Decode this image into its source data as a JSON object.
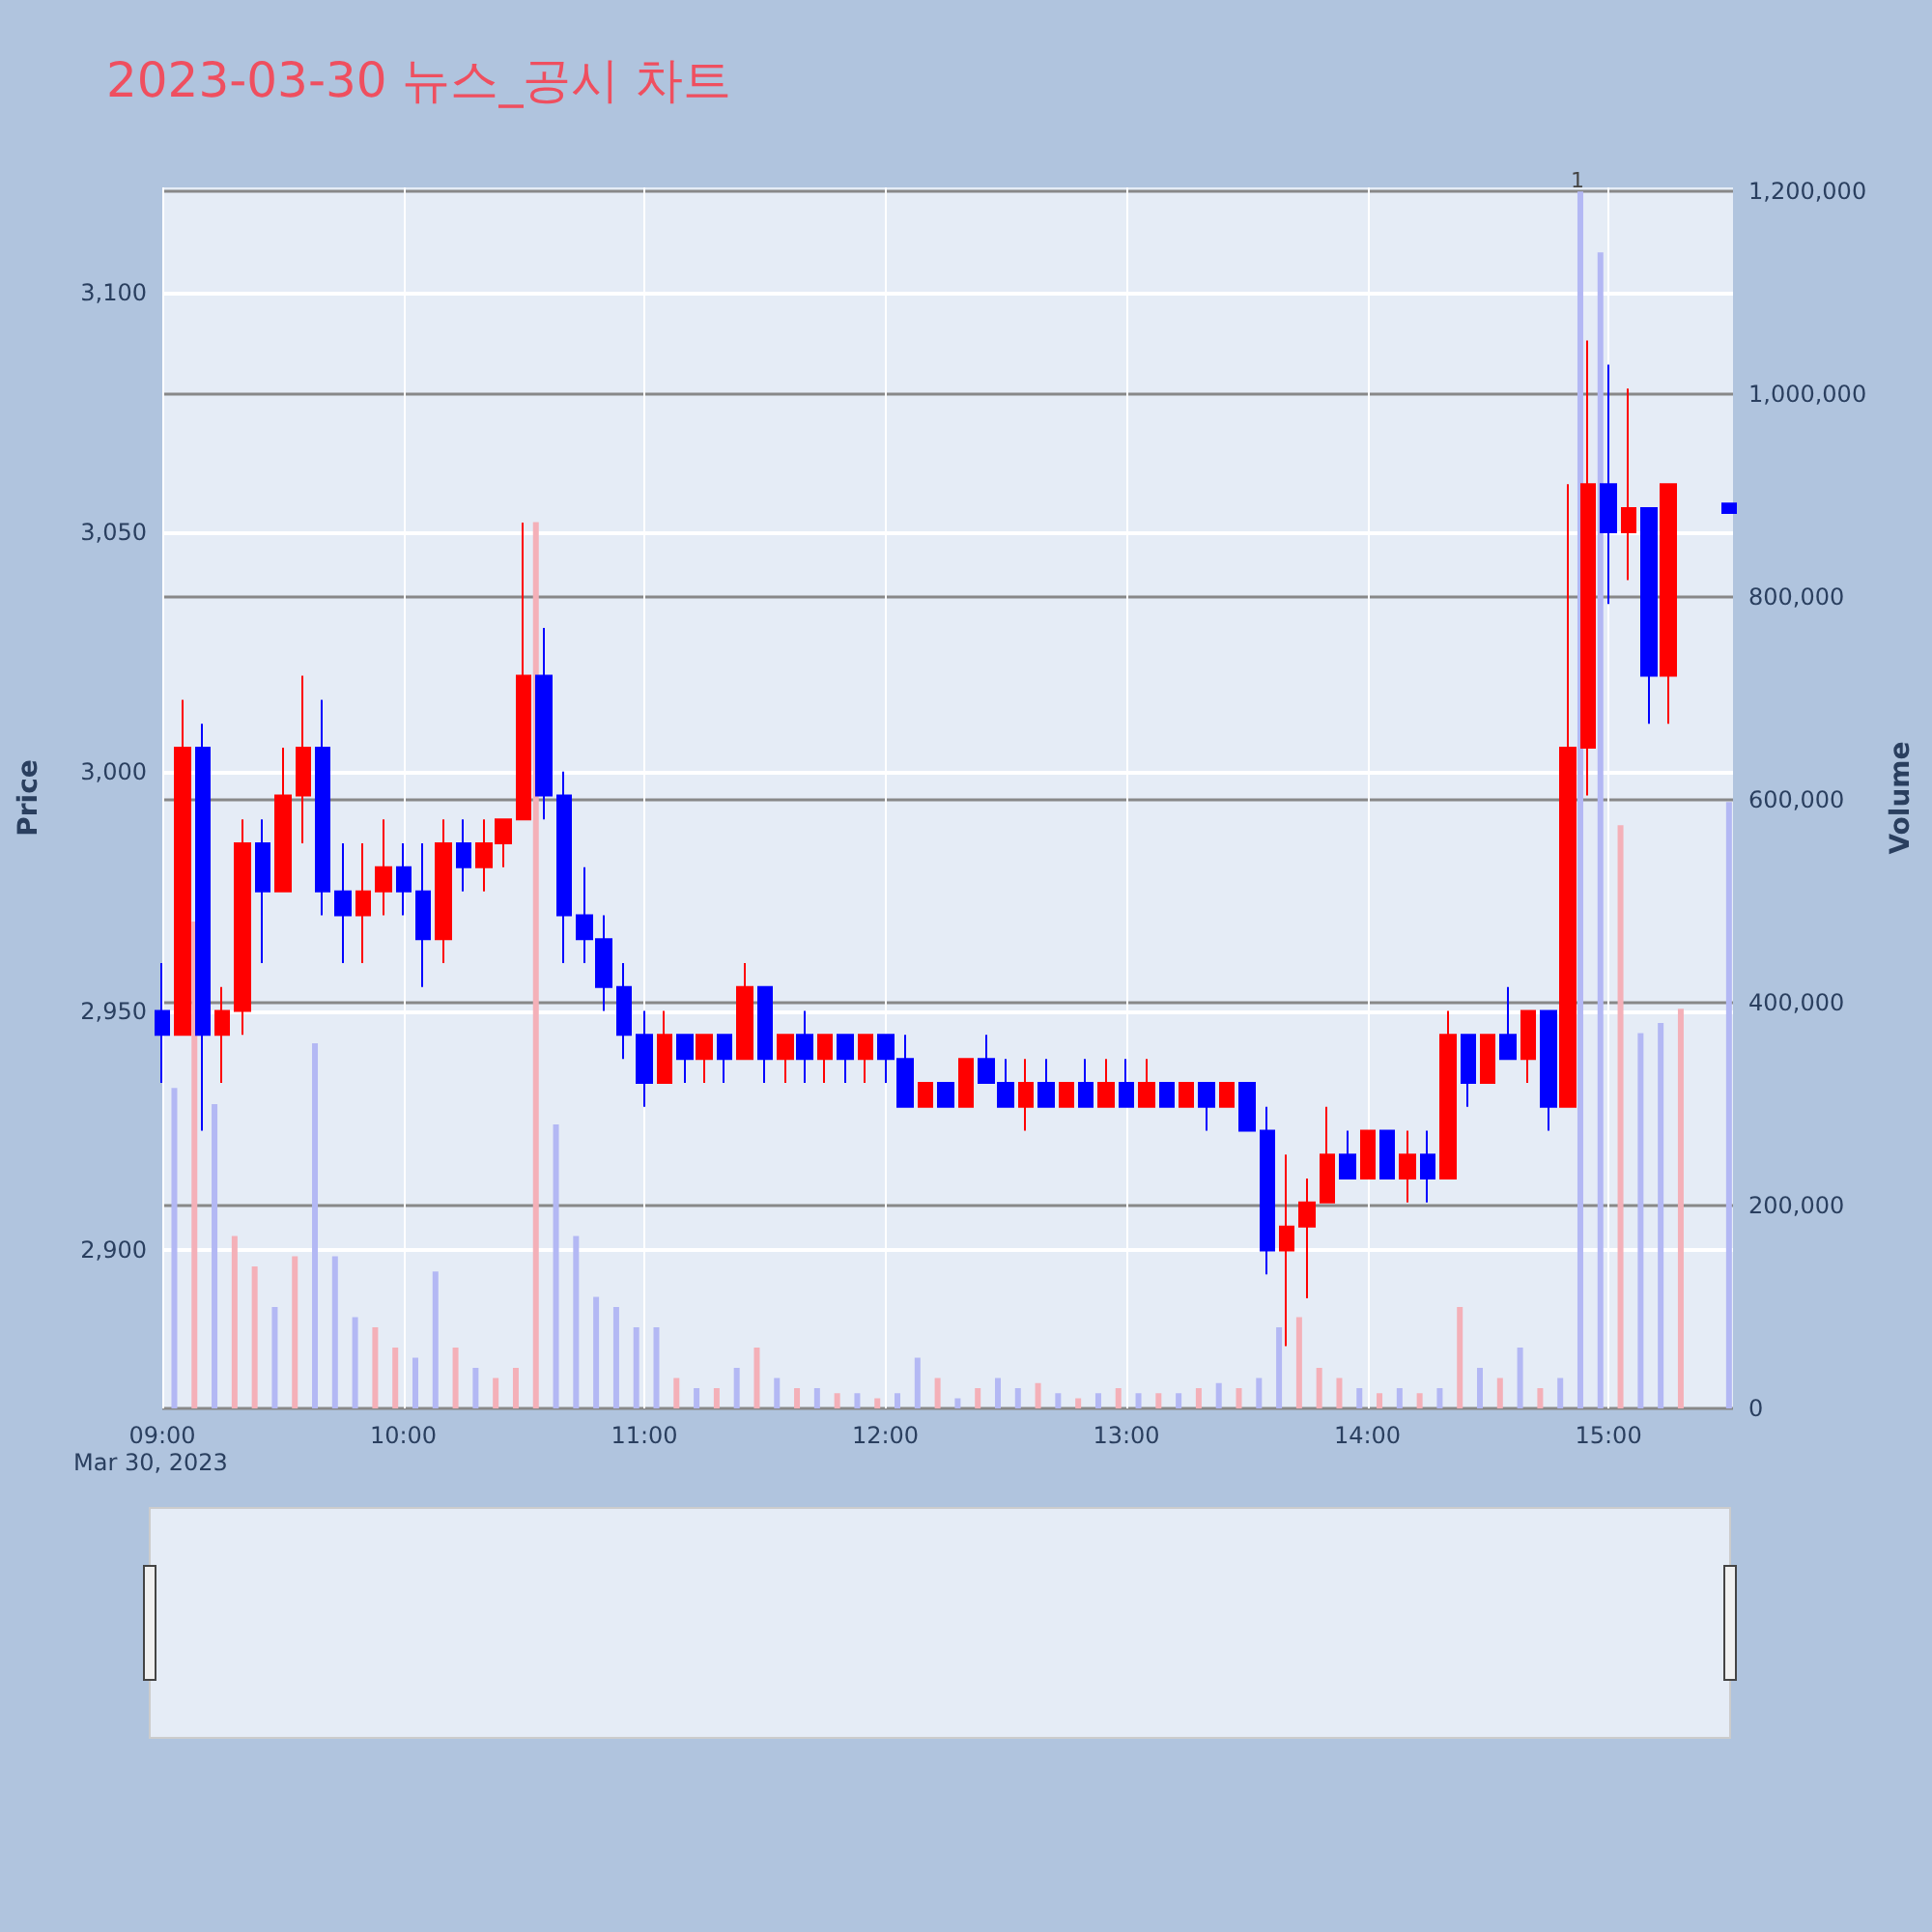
{
  "chart_data": {
    "type": "candlestick",
    "title": "2023-03-30 뉴스_공시 차트",
    "ylabel": "Price",
    "y2label": "Volume",
    "x": [
      "2023-03-30T09:00",
      "2023-03-30T09:05",
      "2023-03-30T09:10",
      "2023-03-30T09:15",
      "2023-03-30T09:20",
      "2023-03-30T09:25",
      "2023-03-30T09:30",
      "2023-03-30T09:35",
      "2023-03-30T09:40",
      "2023-03-30T09:45",
      "2023-03-30T09:50",
      "2023-03-30T09:55",
      "2023-03-30T10:00",
      "2023-03-30T10:05",
      "2023-03-30T10:10",
      "2023-03-30T10:15",
      "2023-03-30T10:20",
      "2023-03-30T10:25",
      "2023-03-30T10:30",
      "2023-03-30T10:35",
      "2023-03-30T10:40",
      "2023-03-30T10:45",
      "2023-03-30T10:50",
      "2023-03-30T10:55",
      "2023-03-30T11:00",
      "2023-03-30T11:05",
      "2023-03-30T11:10",
      "2023-03-30T11:15",
      "2023-03-30T11:20",
      "2023-03-30T11:25",
      "2023-03-30T11:30",
      "2023-03-30T11:35",
      "2023-03-30T11:40",
      "2023-03-30T11:45",
      "2023-03-30T11:50",
      "2023-03-30T11:55",
      "2023-03-30T12:00",
      "2023-03-30T12:05",
      "2023-03-30T12:10",
      "2023-03-30T12:15",
      "2023-03-30T12:20",
      "2023-03-30T12:25",
      "2023-03-30T12:30",
      "2023-03-30T12:35",
      "2023-03-30T12:40",
      "2023-03-30T12:45",
      "2023-03-30T12:50",
      "2023-03-30T12:55",
      "2023-03-30T13:00",
      "2023-03-30T13:05",
      "2023-03-30T13:10",
      "2023-03-30T13:15",
      "2023-03-30T13:20",
      "2023-03-30T13:25",
      "2023-03-30T13:30",
      "2023-03-30T13:35",
      "2023-03-30T13:40",
      "2023-03-30T13:45",
      "2023-03-30T13:50",
      "2023-03-30T13:55",
      "2023-03-30T14:00",
      "2023-03-30T14:05",
      "2023-03-30T14:10",
      "2023-03-30T14:15",
      "2023-03-30T14:20",
      "2023-03-30T14:25",
      "2023-03-30T14:30",
      "2023-03-30T14:35",
      "2023-03-30T14:40",
      "2023-03-30T14:45",
      "2023-03-30T14:50",
      "2023-03-30T14:55",
      "2023-03-30T15:00",
      "2023-03-30T15:05",
      "2023-03-30T15:10",
      "2023-03-30T15:15",
      "2023-03-30T15:30"
    ],
    "xlim": [
      "2023-03-30T09:00",
      "2023-03-30T15:31"
    ],
    "xticks": [
      {
        "value": "2023-03-30T09:00",
        "label": "09:00"
      },
      {
        "value": "2023-03-30T10:00",
        "label": "10:00"
      },
      {
        "value": "2023-03-30T11:00",
        "label": "11:00"
      },
      {
        "value": "2023-03-30T12:00",
        "label": "12:00"
      },
      {
        "value": "2023-03-30T13:00",
        "label": "13:00"
      },
      {
        "value": "2023-03-30T14:00",
        "label": "14:00"
      },
      {
        "value": "2023-03-30T15:00",
        "label": "15:00"
      }
    ],
    "ylim": [
      2867,
      3122
    ],
    "yticks": [
      {
        "value": 2900,
        "label": "2,900"
      },
      {
        "value": 2950,
        "label": "2,950"
      },
      {
        "value": 3000,
        "label": "3,000"
      },
      {
        "value": 3050,
        "label": "3,050"
      },
      {
        "value": 3100,
        "label": "3,100"
      }
    ],
    "y2lim": [
      0,
      1204000
    ],
    "y2ticks": [
      0,
      {
        "value": 200000,
        "label": "200,000"
      },
      {
        "value": 400000,
        "label": "400,000"
      },
      {
        "value": 600000,
        "label": "600,000"
      },
      {
        "value": 800000,
        "label": "800,000"
      },
      {
        "value": 1000000,
        "label": "1,000,000"
      },
      {
        "value": 1200000,
        "label": "1,200,000"
      }
    ],
    "grid": true,
    "annotations": [
      "Mar 30, 2023",
      "1"
    ],
    "series": [
      {
        "ohlc": [
          [
            2950,
            2960,
            2935,
            2945
          ],
          [
            2945,
            3015,
            2945,
            3005
          ],
          [
            3005,
            3010,
            2925,
            2945
          ],
          [
            2945,
            2955,
            2935,
            2950
          ],
          [
            2950,
            2990,
            2945,
            2985
          ],
          [
            2985,
            2990,
            2960,
            2975
          ],
          [
            2975,
            3005,
            2975,
            2995
          ],
          [
            2995,
            3020,
            2985,
            3005
          ],
          [
            3005,
            3015,
            2970,
            2975
          ],
          [
            2975,
            2985,
            2960,
            2970
          ],
          [
            2970,
            2985,
            2960,
            2975
          ],
          [
            2975,
            2990,
            2970,
            2980
          ],
          [
            2980,
            2985,
            2970,
            2975
          ],
          [
            2975,
            2985,
            2955,
            2965
          ],
          [
            2965,
            2990,
            2960,
            2985
          ],
          [
            2985,
            2990,
            2975,
            2980
          ],
          [
            2980,
            2990,
            2975,
            2985
          ],
          [
            2985,
            2990,
            2980,
            2990
          ],
          [
            2990,
            3052,
            2990,
            3020
          ],
          [
            3020,
            3030,
            2990,
            2995
          ],
          [
            2995,
            3000,
            2960,
            2970
          ],
          [
            2970,
            2980,
            2960,
            2965
          ],
          [
            2965,
            2970,
            2950,
            2955
          ],
          [
            2955,
            2960,
            2940,
            2945
          ],
          [
            2945,
            2950,
            2930,
            2935
          ],
          [
            2935,
            2950,
            2935,
            2945
          ],
          [
            2945,
            2945,
            2935,
            2940
          ],
          [
            2940,
            2945,
            2935,
            2945
          ],
          [
            2945,
            2945,
            2935,
            2940
          ],
          [
            2940,
            2960,
            2940,
            2955
          ],
          [
            2955,
            2955,
            2935,
            2940
          ],
          [
            2940,
            2945,
            2935,
            2945
          ],
          [
            2945,
            2950,
            2935,
            2940
          ],
          [
            2940,
            2945,
            2935,
            2945
          ],
          [
            2945,
            2945,
            2935,
            2940
          ],
          [
            2940,
            2945,
            2935,
            2945
          ],
          [
            2945,
            2945,
            2935,
            2940
          ],
          [
            2940,
            2945,
            2930,
            2930
          ],
          [
            2930,
            2935,
            2930,
            2935
          ],
          [
            2935,
            2935,
            2930,
            2930
          ],
          [
            2930,
            2940,
            2930,
            2940
          ],
          [
            2940,
            2945,
            2935,
            2935
          ],
          [
            2935,
            2940,
            2930,
            2930
          ],
          [
            2930,
            2940,
            2925,
            2935
          ],
          [
            2935,
            2940,
            2930,
            2930
          ],
          [
            2930,
            2935,
            2930,
            2935
          ],
          [
            2935,
            2940,
            2930,
            2930
          ],
          [
            2930,
            2940,
            2930,
            2935
          ],
          [
            2935,
            2940,
            2930,
            2930
          ],
          [
            2930,
            2940,
            2930,
            2935
          ],
          [
            2935,
            2935,
            2930,
            2930
          ],
          [
            2930,
            2935,
            2930,
            2935
          ],
          [
            2935,
            2935,
            2925,
            2930
          ],
          [
            2930,
            2935,
            2930,
            2935
          ],
          [
            2935,
            2935,
            2925,
            2925
          ],
          [
            2925,
            2930,
            2895,
            2900
          ],
          [
            2900,
            2920,
            2880,
            2905
          ],
          [
            2905,
            2915,
            2890,
            2910
          ],
          [
            2910,
            2930,
            2910,
            2920
          ],
          [
            2920,
            2925,
            2915,
            2915
          ],
          [
            2915,
            2925,
            2915,
            2925
          ],
          [
            2925,
            2925,
            2915,
            2915
          ],
          [
            2915,
            2925,
            2910,
            2920
          ],
          [
            2920,
            2925,
            2910,
            2915
          ],
          [
            2915,
            2950,
            2915,
            2945
          ],
          [
            2945,
            2945,
            2930,
            2935
          ],
          [
            2935,
            2945,
            2935,
            2945
          ],
          [
            2945,
            2955,
            2940,
            2940
          ],
          [
            2940,
            2950,
            2935,
            2950
          ],
          [
            2950,
            2950,
            2925,
            2930
          ],
          [
            2930,
            3060,
            2930,
            3005
          ],
          [
            3005,
            3090,
            2995,
            3060
          ],
          [
            3060,
            3085,
            3035,
            3050
          ],
          [
            3050,
            3080,
            3040,
            3055
          ],
          [
            3055,
            3055,
            3010,
            3020
          ],
          [
            3020,
            3060,
            3010,
            3060
          ],
          [
            3056,
            3056,
            3054,
            3054
          ]
        ],
        "colors": [
          "#0000ff",
          "#ff0000",
          "#0000ff",
          "#ff0000",
          "#ff0000",
          "#0000ff",
          "#ff0000",
          "#ff0000",
          "#0000ff",
          "#0000ff",
          "#ff0000",
          "#ff0000",
          "#0000ff",
          "#0000ff",
          "#ff0000",
          "#0000ff",
          "#ff0000",
          "#ff0000",
          "#ff0000",
          "#0000ff",
          "#0000ff",
          "#0000ff",
          "#0000ff",
          "#0000ff",
          "#0000ff",
          "#ff0000",
          "#0000ff",
          "#ff0000",
          "#0000ff",
          "#ff0000",
          "#0000ff",
          "#ff0000",
          "#0000ff",
          "#ff0000",
          "#0000ff",
          "#ff0000",
          "#0000ff",
          "#0000ff",
          "#ff0000",
          "#0000ff",
          "#ff0000",
          "#0000ff",
          "#0000ff",
          "#ff0000",
          "#0000ff",
          "#ff0000",
          "#0000ff",
          "#ff0000",
          "#0000ff",
          "#ff0000",
          "#0000ff",
          "#ff0000",
          "#0000ff",
          "#ff0000",
          "#0000ff",
          "#0000ff",
          "#ff0000",
          "#ff0000",
          "#ff0000",
          "#0000ff",
          "#ff0000",
          "#0000ff",
          "#ff0000",
          "#0000ff",
          "#ff0000",
          "#0000ff",
          "#ff0000",
          "#0000ff",
          "#ff0000",
          "#0000ff",
          "#ff0000",
          "#ff0000",
          "#0000ff",
          "#ff0000",
          "#0000ff",
          "#ff0000",
          "#0000ff"
        ]
      },
      {
        "type": "bar",
        "axis": "y2",
        "x": [
          "2023-03-30T09:03",
          "2023-03-30T09:08",
          "2023-03-30T09:13",
          "2023-03-30T09:18",
          "2023-03-30T09:23",
          "2023-03-30T09:28",
          "2023-03-30T09:33",
          "2023-03-30T09:38",
          "2023-03-30T09:43",
          "2023-03-30T09:48",
          "2023-03-30T09:53",
          "2023-03-30T09:58",
          "2023-03-30T10:03",
          "2023-03-30T10:08",
          "2023-03-30T10:13",
          "2023-03-30T10:18",
          "2023-03-30T10:23",
          "2023-03-30T10:28",
          "2023-03-30T10:33",
          "2023-03-30T10:38",
          "2023-03-30T10:43",
          "2023-03-30T10:48",
          "2023-03-30T10:53",
          "2023-03-30T10:58",
          "2023-03-30T11:03",
          "2023-03-30T11:08",
          "2023-03-30T11:13",
          "2023-03-30T11:18",
          "2023-03-30T11:23",
          "2023-03-30T11:28",
          "2023-03-30T11:33",
          "2023-03-30T11:38",
          "2023-03-30T11:43",
          "2023-03-30T11:48",
          "2023-03-30T11:53",
          "2023-03-30T11:58",
          "2023-03-30T12:03",
          "2023-03-30T12:08",
          "2023-03-30T12:13",
          "2023-03-30T12:18",
          "2023-03-30T12:23",
          "2023-03-30T12:28",
          "2023-03-30T12:33",
          "2023-03-30T12:38",
          "2023-03-30T12:43",
          "2023-03-30T12:48",
          "2023-03-30T12:53",
          "2023-03-30T12:58",
          "2023-03-30T13:03",
          "2023-03-30T13:08",
          "2023-03-30T13:13",
          "2023-03-30T13:18",
          "2023-03-30T13:23",
          "2023-03-30T13:28",
          "2023-03-30T13:33",
          "2023-03-30T13:38",
          "2023-03-30T13:43",
          "2023-03-30T13:48",
          "2023-03-30T13:53",
          "2023-03-30T13:58",
          "2023-03-30T14:03",
          "2023-03-30T14:08",
          "2023-03-30T14:13",
          "2023-03-30T14:18",
          "2023-03-30T14:23",
          "2023-03-30T14:28",
          "2023-03-30T14:33",
          "2023-03-30T14:38",
          "2023-03-30T14:43",
          "2023-03-30T14:48",
          "2023-03-30T14:53",
          "2023-03-30T14:58",
          "2023-03-30T15:03",
          "2023-03-30T15:08",
          "2023-03-30T15:13",
          "2023-03-30T15:18",
          "2023-03-30T15:30"
        ],
        "values": [
          316000,
          480000,
          300000,
          170000,
          140000,
          100000,
          150000,
          360000,
          150000,
          90000,
          80000,
          60000,
          50000,
          135000,
          60000,
          40000,
          30000,
          40000,
          874000,
          280000,
          170000,
          110000,
          100000,
          80000,
          80000,
          30000,
          20000,
          20000,
          40000,
          60000,
          30000,
          20000,
          20000,
          15000,
          15000,
          10000,
          15000,
          50000,
          30000,
          10000,
          20000,
          30000,
          20000,
          25000,
          15000,
          10000,
          15000,
          20000,
          15000,
          15000,
          15000,
          20000,
          25000,
          20000,
          30000,
          80000,
          90000,
          40000,
          30000,
          20000,
          15000,
          20000,
          15000,
          20000,
          100000,
          40000,
          30000,
          60000,
          20000,
          30000,
          1200000,
          1140000,
          575000,
          370000,
          380000,
          394000,
          598000
        ],
        "colors": [
          "#b3b8f4",
          "#f4b0b8",
          "#b3b8f4",
          "#f4b0b8",
          "#f4b0b8",
          "#b3b8f4",
          "#f4b0b8",
          "#b3b8f4",
          "#b3b8f4",
          "#b3b8f4",
          "#f4b0b8",
          "#f4b0b8",
          "#b3b8f4",
          "#b3b8f4",
          "#f4b0b8",
          "#b3b8f4",
          "#f4b0b8",
          "#f4b0b8",
          "#f4b0b8",
          "#b3b8f4",
          "#b3b8f4",
          "#b3b8f4",
          "#b3b8f4",
          "#b3b8f4",
          "#b3b8f4",
          "#f4b0b8",
          "#b3b8f4",
          "#f4b0b8",
          "#b3b8f4",
          "#f4b0b8",
          "#b3b8f4",
          "#f4b0b8",
          "#b3b8f4",
          "#f4b0b8",
          "#b3b8f4",
          "#f4b0b8",
          "#b3b8f4",
          "#b3b8f4",
          "#f4b0b8",
          "#b3b8f4",
          "#f4b0b8",
          "#b3b8f4",
          "#b3b8f4",
          "#f4b0b8",
          "#b3b8f4",
          "#f4b0b8",
          "#b3b8f4",
          "#f4b0b8",
          "#b3b8f4",
          "#f4b0b8",
          "#b3b8f4",
          "#f4b0b8",
          "#b3b8f4",
          "#f4b0b8",
          "#b3b8f4",
          "#b3b8f4",
          "#f4b0b8",
          "#f4b0b8",
          "#f4b0b8",
          "#b3b8f4",
          "#f4b0b8",
          "#b3b8f4",
          "#f4b0b8",
          "#b3b8f4",
          "#f4b0b8",
          "#b3b8f4",
          "#f4b0b8",
          "#b3b8f4",
          "#f4b0b8",
          "#b3b8f4",
          "#b3b8f4",
          "#b3b8f4",
          "#f4b0b8",
          "#b3b8f4",
          "#b3b8f4",
          "#f4b0b8",
          "#b3b8f4"
        ]
      }
    ]
  }
}
